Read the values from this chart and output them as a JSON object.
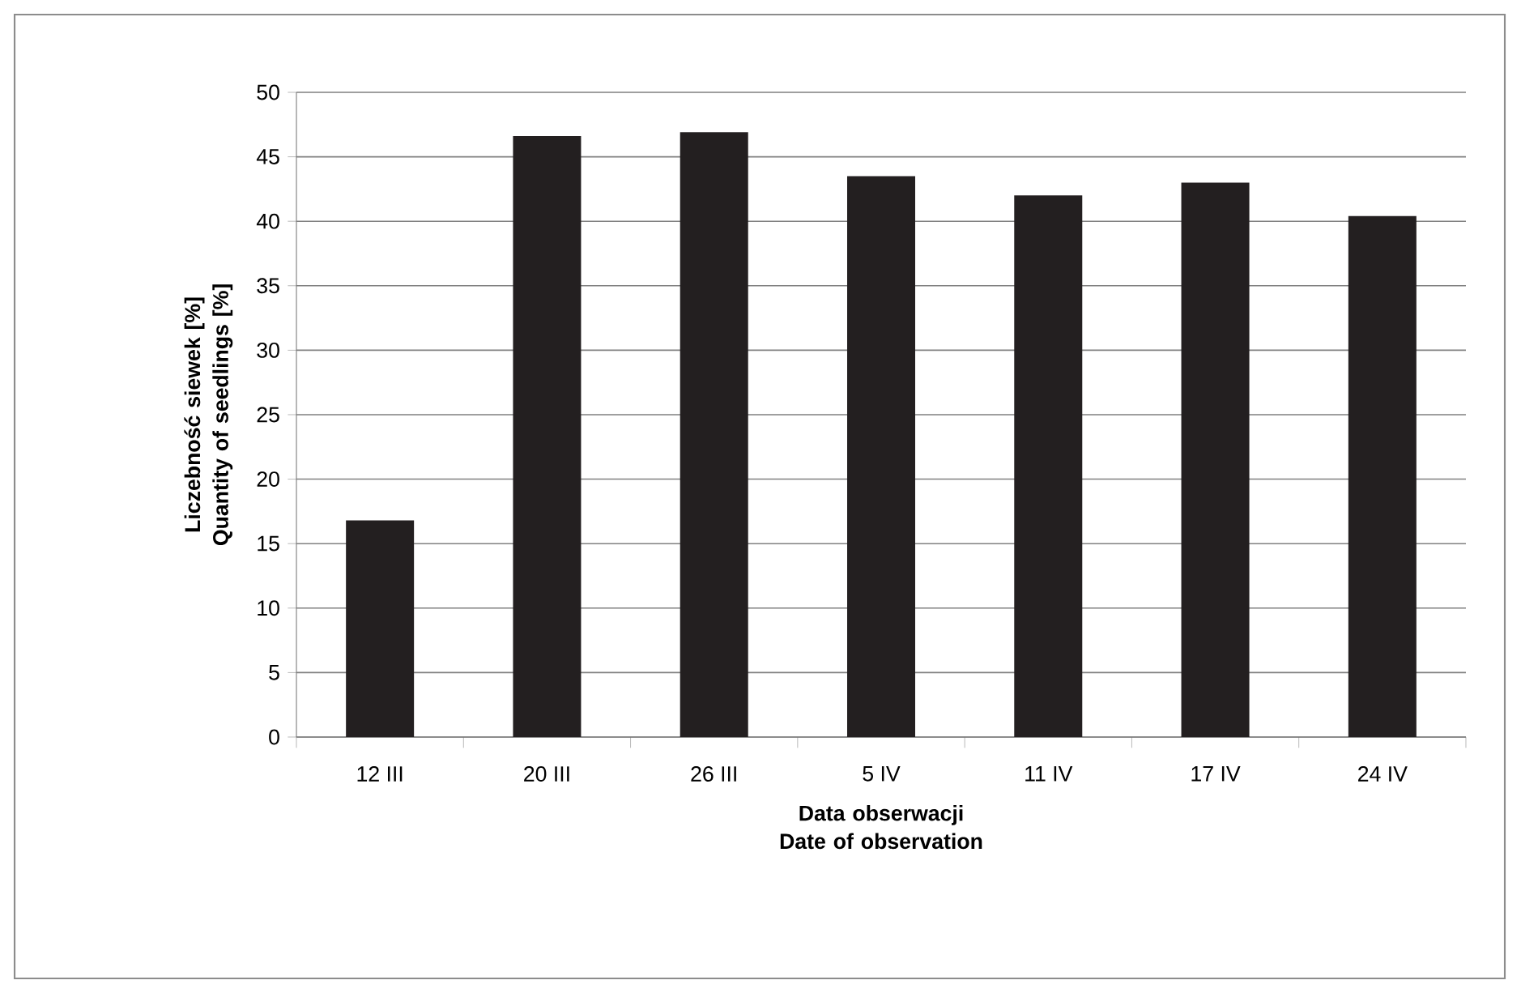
{
  "chart_data": {
    "type": "bar",
    "categories": [
      "12 III",
      "20 III",
      "26 III",
      "5 IV",
      "11 IV",
      "17 IV",
      "24 IV"
    ],
    "values": [
      16.8,
      46.6,
      46.9,
      43.5,
      42.0,
      43.0,
      40.4
    ],
    "color": "#231f20",
    "ylim": [
      0,
      50
    ],
    "yticks": [
      0,
      5,
      10,
      15,
      20,
      25,
      30,
      35,
      40,
      45,
      50
    ],
    "xlabel": "Data obserwacji Date of observation",
    "ylabel": "Liczebność siewek [%] Quantity of seedlings [%]",
    "grid": "y"
  }
}
